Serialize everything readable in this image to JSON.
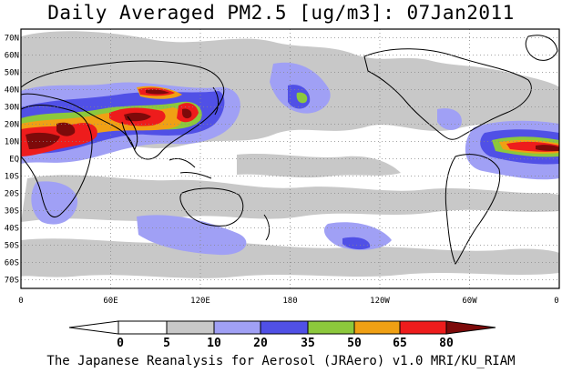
{
  "title": "Daily Averaged PM2.5 [ug/m3]: 07Jan2011",
  "footer": "The Japanese Reanalysis for Aerosol (JRAero) v1.0 MRI/KU_RIAM",
  "map": {
    "lon_range": [
      0,
      360
    ],
    "lat_range": [
      -75,
      75
    ],
    "lat_labels": [
      "70N",
      "60N",
      "50N",
      "40N",
      "30N",
      "20N",
      "10N",
      "EQ",
      "10S",
      "20S",
      "30S",
      "40S",
      "50S",
      "60S",
      "70S"
    ],
    "lat_values": [
      70,
      60,
      50,
      40,
      30,
      20,
      10,
      0,
      -10,
      -20,
      -30,
      -40,
      -50,
      -60,
      -70
    ],
    "lon_labels": [
      "0",
      "60E",
      "120E",
      "180",
      "120W",
      "60W",
      "0"
    ],
    "lon_values": [
      0,
      60,
      120,
      180,
      240,
      300,
      360
    ],
    "grid": "dotted"
  },
  "colorbar": {
    "labels": [
      "0",
      "5",
      "10",
      "20",
      "35",
      "50",
      "65",
      "80"
    ],
    "colors": [
      "#ffffff",
      "#c8c8c8",
      "#a0a0f5",
      "#5050e6",
      "#8cc83c",
      "#f0a014",
      "#ee1c1c",
      "#7d0a0a"
    ]
  }
}
